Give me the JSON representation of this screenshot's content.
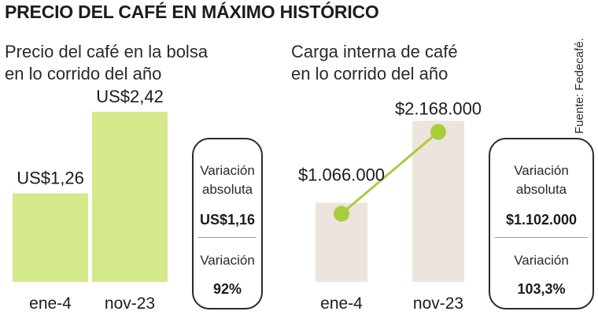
{
  "title": "PRECIO DEL CAFÉ EN MÁXIMO HISTÓRICO",
  "source": "Fuente: Fedecafé.",
  "colors": {
    "green": "#d4e88c",
    "beige": "#ede4dd",
    "line_green": "#a9cc3c",
    "text": "#1c1c1c"
  },
  "chart_data": [
    {
      "type": "bar",
      "title": "Precio del café en la bolsa en lo corrido del año",
      "title_lines": [
        "Precio del café en la bolsa",
        "en lo corrido del año"
      ],
      "categories": [
        "ene-4",
        "nov-23"
      ],
      "values": [
        1.26,
        2.42
      ],
      "data_labels": [
        "US$1,26",
        "US$2,42"
      ],
      "ylim": [
        0,
        2.8
      ],
      "grid": false,
      "summary": {
        "abs_label_lines": [
          "Variación",
          "absoluta"
        ],
        "abs_value": "US$1,16",
        "pct_label": "Variación",
        "pct_value": "92%"
      }
    },
    {
      "type": "bar",
      "overlay": "line",
      "title": "Carga interna de café en lo corrido del año",
      "title_lines": [
        "Carga interna de café",
        "en lo corrido del año"
      ],
      "categories": [
        "ene-4",
        "nov-23"
      ],
      "values": [
        1066000,
        2168000
      ],
      "data_labels": [
        "$1.066.000",
        "$2.168.000"
      ],
      "ylim": [
        0,
        2650000
      ],
      "grid": false,
      "summary": {
        "abs_label_lines": [
          "Variación",
          "absoluta"
        ],
        "abs_value": "$1.102.000",
        "pct_label": "Variación",
        "pct_value": "103,3%"
      }
    }
  ]
}
